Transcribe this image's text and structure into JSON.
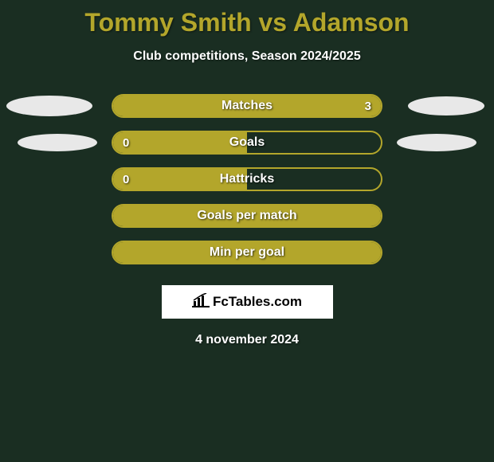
{
  "title": "Tommy Smith vs Adamson",
  "title_color": "#b3a62b",
  "subtitle": "Club competitions, Season 2024/2025",
  "background_color": "#1a2e22",
  "text_color": "#ffffff",
  "rows": [
    {
      "label": "Matches",
      "left_value": "",
      "right_value": "3",
      "bar_border_color": "#b3a62b",
      "bar_fill_color": "#b3a62b",
      "fill_side": "full",
      "show_left_ellipse": true,
      "show_right_ellipse": true,
      "left_ellipse_color": "#e8e8e8",
      "right_ellipse_color": "#e8e8e8",
      "ellipse_row": 1
    },
    {
      "label": "Goals",
      "left_value": "0",
      "right_value": "",
      "bar_border_color": "#b3a62b",
      "bar_fill_color": "#b3a62b",
      "fill_side": "left_half",
      "show_left_ellipse": true,
      "show_right_ellipse": true,
      "left_ellipse_color": "#e8e8e8",
      "right_ellipse_color": "#e8e8e8",
      "ellipse_row": 2
    },
    {
      "label": "Hattricks",
      "left_value": "0",
      "right_value": "",
      "bar_border_color": "#b3a62b",
      "bar_fill_color": "#b3a62b",
      "fill_side": "left_half",
      "show_left_ellipse": false,
      "show_right_ellipse": false
    },
    {
      "label": "Goals per match",
      "left_value": "",
      "right_value": "",
      "bar_border_color": "#b3a62b",
      "bar_fill_color": "#b3a62b",
      "fill_side": "full",
      "show_left_ellipse": false,
      "show_right_ellipse": false
    },
    {
      "label": "Min per goal",
      "left_value": "",
      "right_value": "",
      "bar_border_color": "#b3a62b",
      "bar_fill_color": "#b3a62b",
      "fill_side": "full",
      "show_left_ellipse": false,
      "show_right_ellipse": false
    }
  ],
  "logo_text": "FcTables.com",
  "date_text": "4 november 2024"
}
